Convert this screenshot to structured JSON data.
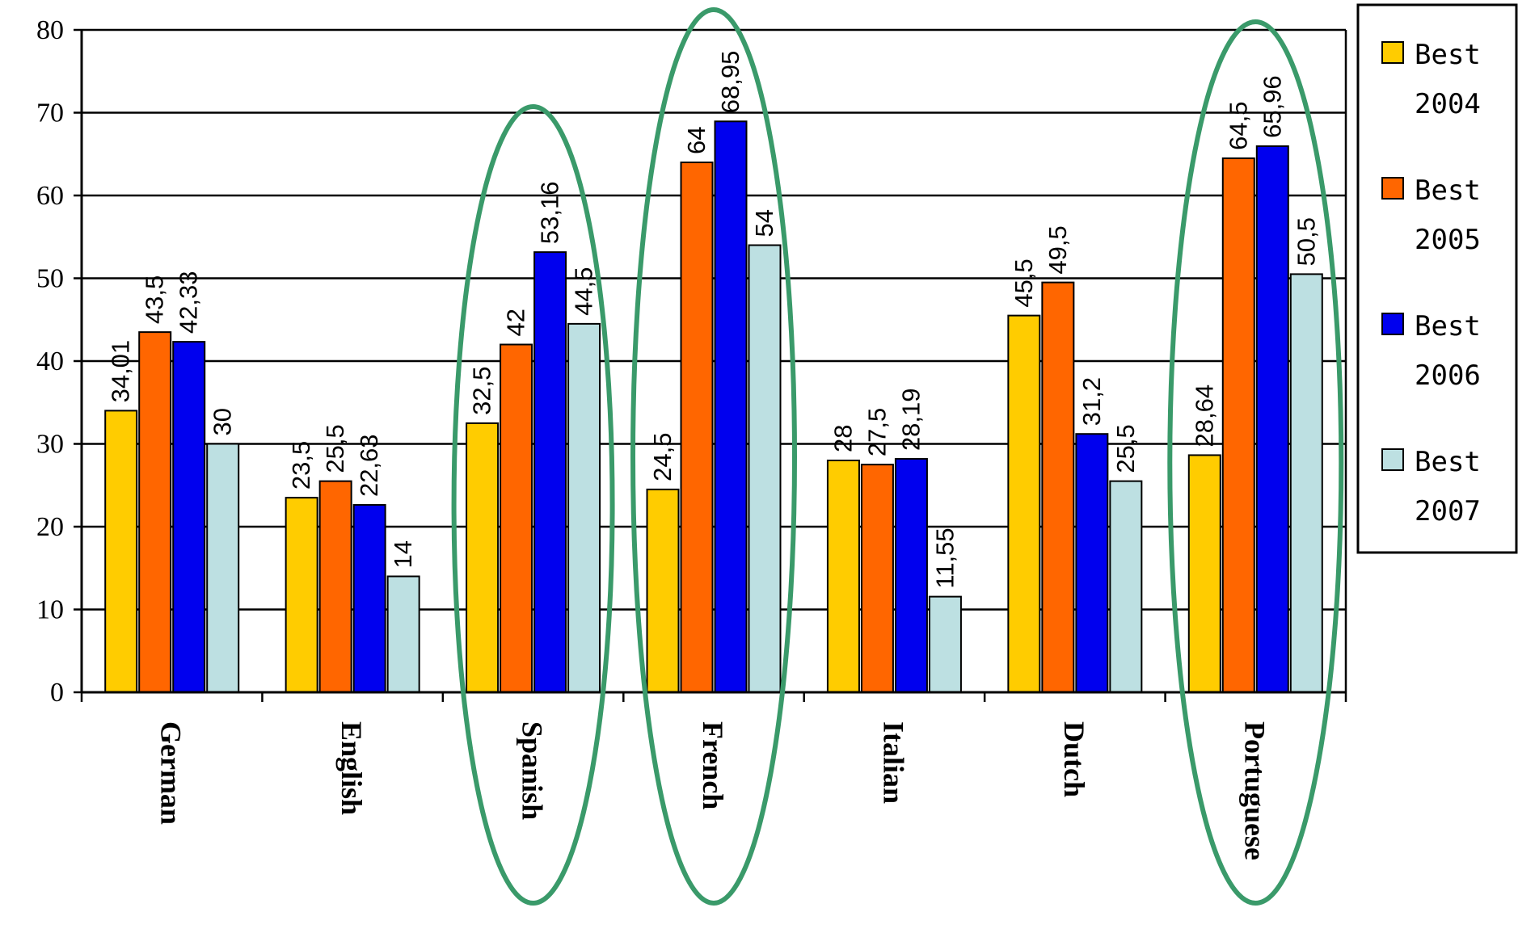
{
  "chart_data": {
    "type": "bar",
    "title": "",
    "xlabel": "",
    "ylabel": "",
    "ylim": [
      0,
      80
    ],
    "yticks": [
      0,
      10,
      20,
      30,
      40,
      50,
      60,
      70,
      80
    ],
    "grid": true,
    "legend_position": "top-right",
    "categories": [
      "German",
      "English",
      "Spanish",
      "French",
      "Italian",
      "Dutch",
      "Portuguese"
    ],
    "highlighted_categories": [
      "Spanish",
      "French",
      "Portuguese"
    ],
    "highlight_color": "#3a9a6a",
    "series": [
      {
        "name": "Best 2004",
        "color": "#ffcc00",
        "values": [
          34.01,
          23.5,
          32.5,
          24.5,
          28,
          45.5,
          28.64
        ],
        "labels": [
          "34,01",
          "23,5",
          "32,5",
          "24,5",
          "28",
          "45,5",
          "28,64"
        ]
      },
      {
        "name": "Best 2005",
        "color": "#ff6600",
        "values": [
          43.5,
          25.5,
          42,
          64,
          27.5,
          49.5,
          64.5
        ],
        "labels": [
          "43,5",
          "25,5",
          "42",
          "64",
          "27,5",
          "49,5",
          "64,5"
        ]
      },
      {
        "name": "Best 2006",
        "color": "#0000ee",
        "values": [
          42.33,
          22.63,
          53.16,
          68.95,
          28.19,
          31.2,
          65.96
        ],
        "labels": [
          "42,33",
          "22,63",
          "53,16",
          "68,95",
          "28,19",
          "31,2",
          "65,96"
        ]
      },
      {
        "name": "Best 2007",
        "color": "#bde0e2",
        "values": [
          30,
          14,
          44.5,
          54,
          11.55,
          25.5,
          50.5
        ],
        "labels": [
          "30",
          "14",
          "44,5",
          "54",
          "11,55",
          "25,5",
          "50,5"
        ]
      }
    ]
  }
}
